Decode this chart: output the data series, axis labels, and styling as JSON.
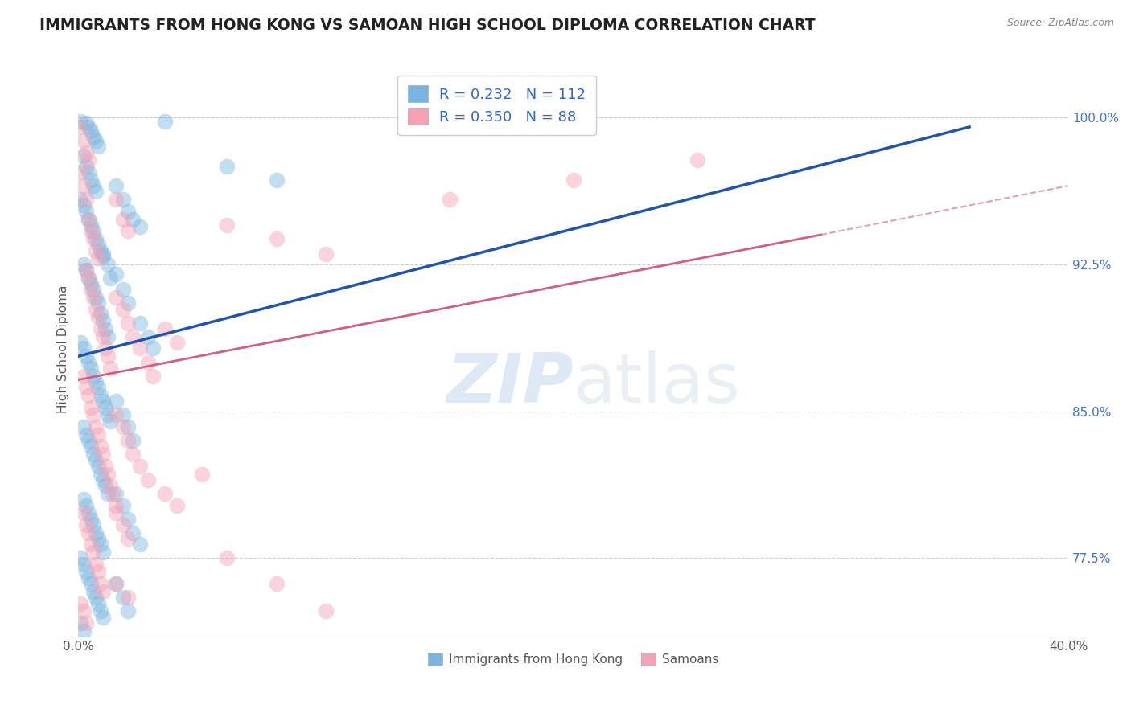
{
  "title": "IMMIGRANTS FROM HONG KONG VS SAMOAN HIGH SCHOOL DIPLOMA CORRELATION CHART",
  "source_text": "Source: ZipAtlas.com",
  "ylabel": "High School Diploma",
  "x_min": 0.0,
  "x_max": 0.4,
  "y_min": 0.735,
  "y_max": 1.028,
  "y_ticks": [
    0.775,
    0.85,
    0.925,
    1.0
  ],
  "y_tick_labels": [
    "77.5%",
    "85.0%",
    "92.5%",
    "100.0%"
  ],
  "x_ticks": [
    0.0,
    0.4
  ],
  "x_tick_labels": [
    "0.0%",
    "40.0%"
  ],
  "watermark_zip": "ZIP",
  "watermark_atlas": "atlas",
  "blue_color": "#7ab4e0",
  "pink_color": "#f4a0b5",
  "blue_line_color": "#2255aa",
  "pink_line_color": "#d06080",
  "dashed_line_color": "#bbbbbb",
  "title_color": "#222222",
  "title_fontsize": 13.5,
  "blue_line": {
    "x0": 0.0,
    "y0": 0.878,
    "x1": 0.36,
    "y1": 0.995
  },
  "pink_line": {
    "x0": 0.0,
    "y0": 0.866,
    "x1": 0.3,
    "y1": 0.94
  },
  "dashed_line": {
    "x0": 0.3,
    "y0": 0.94,
    "x1": 0.4,
    "y1": 0.965
  },
  "blue_scatter": [
    [
      0.001,
      0.998
    ],
    [
      0.003,
      0.997
    ],
    [
      0.004,
      0.995
    ],
    [
      0.005,
      0.993
    ],
    [
      0.006,
      0.99
    ],
    [
      0.007,
      0.988
    ],
    [
      0.008,
      0.985
    ],
    [
      0.002,
      0.98
    ],
    [
      0.003,
      0.975
    ],
    [
      0.004,
      0.972
    ],
    [
      0.005,
      0.968
    ],
    [
      0.006,
      0.965
    ],
    [
      0.007,
      0.962
    ],
    [
      0.001,
      0.958
    ],
    [
      0.002,
      0.955
    ],
    [
      0.003,
      0.952
    ],
    [
      0.004,
      0.948
    ],
    [
      0.005,
      0.945
    ],
    [
      0.006,
      0.942
    ],
    [
      0.007,
      0.938
    ],
    [
      0.008,
      0.935
    ],
    [
      0.009,
      0.932
    ],
    [
      0.01,
      0.929
    ],
    [
      0.002,
      0.925
    ],
    [
      0.003,
      0.922
    ],
    [
      0.004,
      0.918
    ],
    [
      0.005,
      0.915
    ],
    [
      0.006,
      0.912
    ],
    [
      0.007,
      0.908
    ],
    [
      0.008,
      0.905
    ],
    [
      0.009,
      0.9
    ],
    [
      0.01,
      0.896
    ],
    [
      0.011,
      0.892
    ],
    [
      0.012,
      0.888
    ],
    [
      0.001,
      0.885
    ],
    [
      0.002,
      0.882
    ],
    [
      0.003,
      0.878
    ],
    [
      0.004,
      0.875
    ],
    [
      0.005,
      0.872
    ],
    [
      0.006,
      0.868
    ],
    [
      0.007,
      0.865
    ],
    [
      0.008,
      0.862
    ],
    [
      0.009,
      0.858
    ],
    [
      0.01,
      0.855
    ],
    [
      0.011,
      0.852
    ],
    [
      0.012,
      0.848
    ],
    [
      0.013,
      0.845
    ],
    [
      0.002,
      0.842
    ],
    [
      0.003,
      0.838
    ],
    [
      0.004,
      0.835
    ],
    [
      0.005,
      0.832
    ],
    [
      0.006,
      0.828
    ],
    [
      0.007,
      0.825
    ],
    [
      0.008,
      0.822
    ],
    [
      0.009,
      0.818
    ],
    [
      0.01,
      0.815
    ],
    [
      0.011,
      0.812
    ],
    [
      0.012,
      0.808
    ],
    [
      0.002,
      0.805
    ],
    [
      0.003,
      0.802
    ],
    [
      0.004,
      0.798
    ],
    [
      0.005,
      0.795
    ],
    [
      0.006,
      0.792
    ],
    [
      0.007,
      0.788
    ],
    [
      0.008,
      0.785
    ],
    [
      0.009,
      0.782
    ],
    [
      0.01,
      0.778
    ],
    [
      0.001,
      0.775
    ],
    [
      0.002,
      0.772
    ],
    [
      0.003,
      0.768
    ],
    [
      0.004,
      0.765
    ],
    [
      0.005,
      0.762
    ],
    [
      0.006,
      0.758
    ],
    [
      0.007,
      0.755
    ],
    [
      0.008,
      0.752
    ],
    [
      0.009,
      0.748
    ],
    [
      0.01,
      0.745
    ],
    [
      0.001,
      0.742
    ],
    [
      0.002,
      0.738
    ],
    [
      0.015,
      0.965
    ],
    [
      0.018,
      0.958
    ],
    [
      0.02,
      0.952
    ],
    [
      0.022,
      0.948
    ],
    [
      0.025,
      0.944
    ],
    [
      0.015,
      0.92
    ],
    [
      0.018,
      0.912
    ],
    [
      0.02,
      0.905
    ],
    [
      0.025,
      0.895
    ],
    [
      0.028,
      0.888
    ],
    [
      0.03,
      0.882
    ],
    [
      0.015,
      0.855
    ],
    [
      0.018,
      0.848
    ],
    [
      0.02,
      0.842
    ],
    [
      0.022,
      0.835
    ],
    [
      0.015,
      0.808
    ],
    [
      0.018,
      0.802
    ],
    [
      0.02,
      0.795
    ],
    [
      0.022,
      0.788
    ],
    [
      0.025,
      0.782
    ],
    [
      0.015,
      0.762
    ],
    [
      0.018,
      0.755
    ],
    [
      0.02,
      0.748
    ],
    [
      0.035,
      0.998
    ],
    [
      0.06,
      0.975
    ],
    [
      0.08,
      0.968
    ],
    [
      0.01,
      0.93
    ],
    [
      0.012,
      0.925
    ],
    [
      0.013,
      0.918
    ]
  ],
  "pink_scatter": [
    [
      0.001,
      0.995
    ],
    [
      0.002,
      0.988
    ],
    [
      0.003,
      0.982
    ],
    [
      0.004,
      0.978
    ],
    [
      0.001,
      0.972
    ],
    [
      0.002,
      0.965
    ],
    [
      0.003,
      0.958
    ],
    [
      0.004,
      0.948
    ],
    [
      0.005,
      0.942
    ],
    [
      0.006,
      0.938
    ],
    [
      0.007,
      0.932
    ],
    [
      0.008,
      0.928
    ],
    [
      0.003,
      0.922
    ],
    [
      0.004,
      0.918
    ],
    [
      0.005,
      0.912
    ],
    [
      0.006,
      0.908
    ],
    [
      0.007,
      0.902
    ],
    [
      0.008,
      0.898
    ],
    [
      0.009,
      0.892
    ],
    [
      0.01,
      0.888
    ],
    [
      0.011,
      0.882
    ],
    [
      0.012,
      0.878
    ],
    [
      0.013,
      0.872
    ],
    [
      0.002,
      0.868
    ],
    [
      0.003,
      0.862
    ],
    [
      0.004,
      0.858
    ],
    [
      0.005,
      0.852
    ],
    [
      0.006,
      0.848
    ],
    [
      0.007,
      0.842
    ],
    [
      0.008,
      0.838
    ],
    [
      0.009,
      0.832
    ],
    [
      0.01,
      0.828
    ],
    [
      0.011,
      0.822
    ],
    [
      0.012,
      0.818
    ],
    [
      0.013,
      0.812
    ],
    [
      0.014,
      0.808
    ],
    [
      0.015,
      0.802
    ],
    [
      0.002,
      0.798
    ],
    [
      0.003,
      0.792
    ],
    [
      0.004,
      0.788
    ],
    [
      0.005,
      0.782
    ],
    [
      0.006,
      0.778
    ],
    [
      0.007,
      0.772
    ],
    [
      0.008,
      0.768
    ],
    [
      0.009,
      0.762
    ],
    [
      0.01,
      0.758
    ],
    [
      0.001,
      0.752
    ],
    [
      0.002,
      0.748
    ],
    [
      0.003,
      0.742
    ],
    [
      0.015,
      0.958
    ],
    [
      0.018,
      0.948
    ],
    [
      0.02,
      0.942
    ],
    [
      0.015,
      0.908
    ],
    [
      0.018,
      0.902
    ],
    [
      0.02,
      0.895
    ],
    [
      0.022,
      0.888
    ],
    [
      0.025,
      0.882
    ],
    [
      0.028,
      0.875
    ],
    [
      0.03,
      0.868
    ],
    [
      0.015,
      0.848
    ],
    [
      0.018,
      0.842
    ],
    [
      0.02,
      0.835
    ],
    [
      0.022,
      0.828
    ],
    [
      0.025,
      0.822
    ],
    [
      0.028,
      0.815
    ],
    [
      0.015,
      0.798
    ],
    [
      0.018,
      0.792
    ],
    [
      0.02,
      0.785
    ],
    [
      0.015,
      0.762
    ],
    [
      0.02,
      0.755
    ],
    [
      0.06,
      0.945
    ],
    [
      0.08,
      0.938
    ],
    [
      0.1,
      0.93
    ],
    [
      0.15,
      0.958
    ],
    [
      0.2,
      0.968
    ],
    [
      0.25,
      0.978
    ],
    [
      0.035,
      0.808
    ],
    [
      0.04,
      0.802
    ],
    [
      0.05,
      0.818
    ],
    [
      0.06,
      0.775
    ],
    [
      0.08,
      0.762
    ],
    [
      0.1,
      0.748
    ],
    [
      0.035,
      0.892
    ],
    [
      0.04,
      0.885
    ]
  ]
}
